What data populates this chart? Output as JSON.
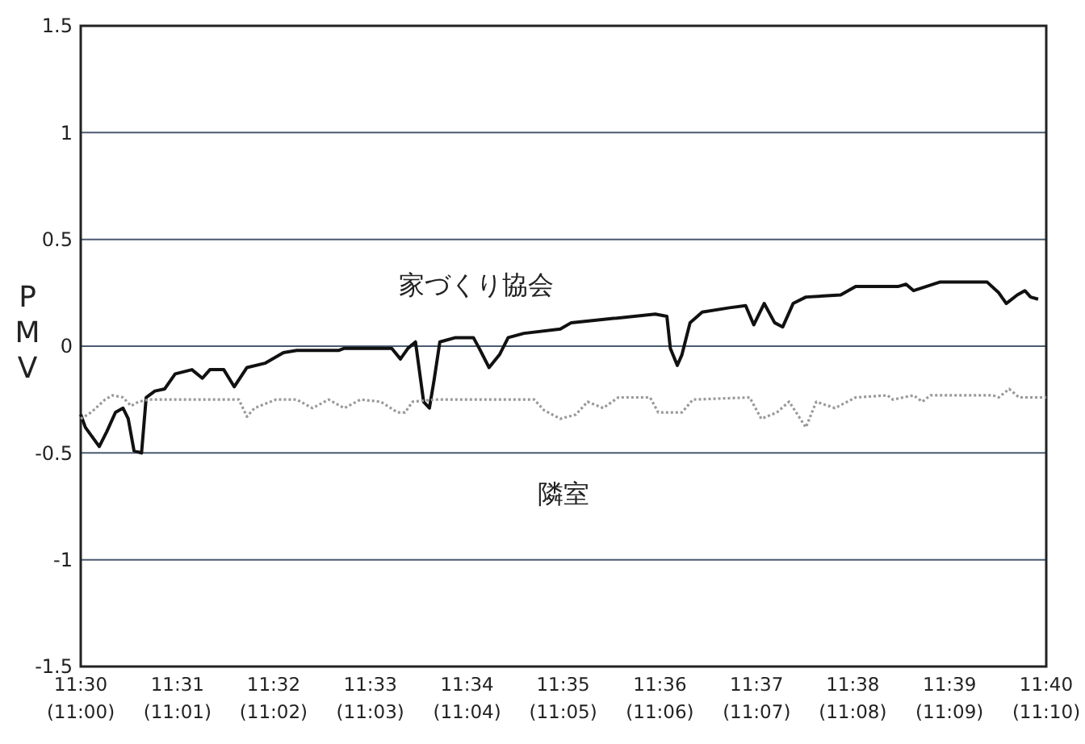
{
  "chart_data": {
    "type": "line",
    "ylabel": "PMV",
    "xlim": [
      11.5,
      11.6667
    ],
    "xticks": [
      {
        "value": 11.5,
        "label": "11:30"
      },
      {
        "value": 11.5167,
        "label": "11:31"
      },
      {
        "value": 11.5333,
        "label": "11:32"
      },
      {
        "value": 11.55,
        "label": "11:33"
      },
      {
        "value": 11.5667,
        "label": "11:34"
      },
      {
        "value": 11.5833,
        "label": "11:35"
      },
      {
        "value": 11.6,
        "label": "11:36"
      },
      {
        "value": 11.6167,
        "label": "11:37"
      },
      {
        "value": 11.6333,
        "label": "11:38"
      },
      {
        "value": 11.65,
        "label": "11:39"
      },
      {
        "value": 11.6667,
        "label": "11:40"
      }
    ],
    "annotations": [
      "(11:00)",
      "(11:01)",
      "(11:02)",
      "(11:03)",
      "(11:04)",
      "(11:05)",
      "(11:06)",
      "(11:07)",
      "(11:08)",
      "(11:09)",
      "(11:10)"
    ],
    "ylim": [
      -1.5,
      1.5
    ],
    "yticks": [
      -1.5,
      -1,
      -0.5,
      0,
      0.5,
      1,
      1.5
    ],
    "grid": "y",
    "series": [
      {
        "name": "家づくり協会",
        "color": "#111111",
        "line_style": "solid",
        "x": [
          11.5,
          11.5008,
          11.5032,
          11.5045,
          11.506,
          11.5073,
          11.5082,
          11.5092,
          11.5105,
          11.5113,
          11.5128,
          11.5145,
          11.5163,
          11.5192,
          11.521,
          11.5223,
          11.5247,
          11.5265,
          11.5287,
          11.5318,
          11.535,
          11.5373,
          11.5445,
          11.5455,
          11.551,
          11.5537,
          11.5552,
          11.5565,
          11.5578,
          11.5592,
          11.5602,
          11.561,
          11.562,
          11.5647,
          11.5678,
          11.5688,
          11.5705,
          11.5723,
          11.5738,
          11.5765,
          11.5828,
          11.5847,
          11.592,
          11.5992,
          11.6012,
          11.6018,
          11.603,
          11.6038,
          11.6052,
          11.6073,
          11.612,
          11.6148,
          11.6162,
          11.618,
          11.6198,
          11.6212,
          11.623,
          11.6252,
          11.6312,
          11.6338,
          11.6412,
          11.6425,
          11.6438,
          11.6483,
          11.6565,
          11.6585,
          11.6598,
          11.6617,
          11.663,
          11.664,
          11.6653
        ],
        "values": [
          -0.32,
          -0.38,
          -0.47,
          -0.4,
          -0.31,
          -0.29,
          -0.34,
          -0.49,
          -0.5,
          -0.24,
          -0.21,
          -0.2,
          -0.13,
          -0.11,
          -0.15,
          -0.11,
          -0.11,
          -0.19,
          -0.1,
          -0.08,
          -0.03,
          -0.02,
          -0.02,
          -0.01,
          -0.01,
          -0.01,
          -0.06,
          -0.01,
          0.02,
          -0.26,
          -0.29,
          -0.16,
          0.02,
          0.04,
          0.04,
          -0.01,
          -0.1,
          -0.04,
          0.04,
          0.06,
          0.08,
          0.11,
          0.13,
          0.15,
          0.14,
          -0.01,
          -0.09,
          -0.04,
          0.11,
          0.16,
          0.18,
          0.19,
          0.1,
          0.2,
          0.11,
          0.09,
          0.2,
          0.23,
          0.24,
          0.28,
          0.28,
          0.29,
          0.26,
          0.3,
          0.3,
          0.25,
          0.2,
          0.24,
          0.26,
          0.23,
          0.22
        ]
      },
      {
        "name": "隣室",
        "color": "#999999",
        "line_style": "dotted",
        "x": [
          11.5,
          11.5018,
          11.5042,
          11.5055,
          11.5073,
          11.5087,
          11.51,
          11.5118,
          11.5273,
          11.5287,
          11.53,
          11.5337,
          11.5373,
          11.54,
          11.5428,
          11.5455,
          11.5483,
          11.5518,
          11.5547,
          11.556,
          11.5573,
          11.561,
          11.5783,
          11.58,
          11.5828,
          11.5855,
          11.5875,
          11.5902,
          11.5928,
          11.5983,
          11.5997,
          11.6038,
          11.6057,
          11.6155,
          11.6175,
          11.6202,
          11.6223,
          11.6252,
          11.627,
          11.6302,
          11.6338,
          11.6393,
          11.6402,
          11.6438,
          11.6453,
          11.6467,
          11.6575,
          11.6585,
          11.6603,
          11.662,
          11.6667
        ],
        "values": [
          -0.34,
          -0.31,
          -0.25,
          -0.23,
          -0.24,
          -0.28,
          -0.26,
          -0.25,
          -0.25,
          -0.33,
          -0.29,
          -0.25,
          -0.25,
          -0.29,
          -0.25,
          -0.29,
          -0.25,
          -0.26,
          -0.31,
          -0.31,
          -0.26,
          -0.25,
          -0.25,
          -0.3,
          -0.34,
          -0.32,
          -0.26,
          -0.29,
          -0.24,
          -0.24,
          -0.31,
          -0.31,
          -0.25,
          -0.24,
          -0.34,
          -0.31,
          -0.26,
          -0.38,
          -0.26,
          -0.29,
          -0.24,
          -0.23,
          -0.25,
          -0.23,
          -0.26,
          -0.23,
          -0.23,
          -0.24,
          -0.2,
          -0.24,
          -0.24
        ]
      }
    ]
  }
}
